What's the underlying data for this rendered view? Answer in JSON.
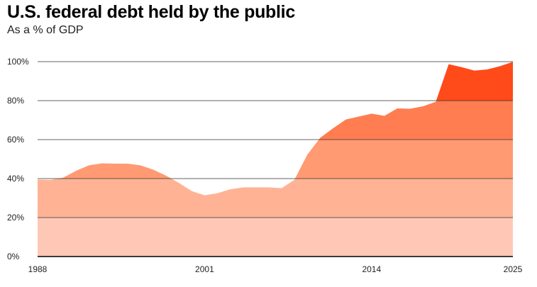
{
  "title": "U.S. federal debt held by the public",
  "subtitle": "As a % of GDP",
  "colors": {
    "band_0_20": "#FFC8B6",
    "band_20_40": "#FFB394",
    "band_40_60": "#FF9A73",
    "band_60_80": "#FF7D50",
    "band_80_100": "#FF4A1A",
    "gridline": "#333333",
    "baseline": "#000000"
  },
  "chart_data": {
    "type": "area",
    "title": "U.S. federal debt held by the public",
    "subtitle": "As a % of GDP",
    "x": [
      1988,
      1989,
      1990,
      1991,
      1992,
      1993,
      1994,
      1995,
      1996,
      1997,
      1998,
      1999,
      2000,
      2001,
      2002,
      2003,
      2004,
      2005,
      2006,
      2007,
      2008,
      2009,
      2010,
      2011,
      2012,
      2013,
      2014,
      2015,
      2016,
      2017,
      2018,
      2019,
      2020,
      2021,
      2022,
      2023,
      2024,
      2025
    ],
    "series": [
      {
        "values": [
          39.5,
          39.3,
          40.5,
          44.0,
          46.8,
          47.8,
          47.7,
          47.7,
          46.8,
          44.6,
          41.5,
          37.8,
          33.6,
          31.4,
          32.5,
          34.5,
          35.5,
          35.5,
          35.5,
          35.1,
          39.4,
          52.3,
          60.9,
          65.8,
          70.3,
          71.8,
          73.3,
          72.2,
          76.0,
          75.8,
          77.1,
          79.4,
          98.7,
          97.2,
          95.4,
          96.0,
          97.7,
          99.9
        ]
      }
    ],
    "color_bands": [
      0,
      20,
      40,
      60,
      80,
      100
    ],
    "y_ticks": [
      "0%",
      "20%",
      "40%",
      "60%",
      "80%",
      "100%"
    ],
    "x_ticks": [
      "1988",
      "2001",
      "2014",
      "2025"
    ],
    "xlim": [
      1988,
      2025
    ],
    "ylim": [
      0,
      100
    ],
    "xlabel": "",
    "ylabel": "",
    "grid": true,
    "legend": "none"
  }
}
